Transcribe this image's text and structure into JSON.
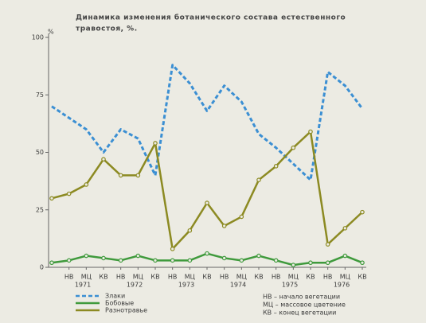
{
  "chart_data": {
    "type": "line",
    "title": [
      "Динамика изменения ботанического состава естественного",
      "травостоя, %."
    ],
    "y_label": "%",
    "categories": [
      null,
      "НВ",
      "МЦ",
      "КВ",
      "НВ",
      "МЦ",
      "КВ",
      "НВ",
      "МЦ",
      "КВ",
      "НВ",
      "МЦ",
      "КВ",
      "НВ",
      "МЦ",
      "КВ",
      "НВ",
      "МЦ",
      "КВ"
    ],
    "year_labels": [
      "1971",
      "1972",
      "1973",
      "1974",
      "1975",
      "1976"
    ],
    "ylim": [
      0,
      100
    ],
    "yticks": [
      0,
      25,
      50,
      75,
      100
    ],
    "series": [
      {
        "name": "Злаки",
        "color": "#3b8fd3",
        "dash": true,
        "marker": false,
        "values": [
          70,
          65,
          60,
          50,
          60,
          56,
          40,
          88,
          80,
          68,
          79,
          72,
          58,
          52,
          45,
          38,
          85,
          79,
          69
        ]
      },
      {
        "name": "Бобовые",
        "color": "#3f9a3c",
        "dash": false,
        "marker": true,
        "values": [
          2,
          3,
          5,
          4,
          3,
          5,
          3,
          3,
          3,
          6,
          4,
          3,
          5,
          3,
          1,
          2,
          2,
          5,
          2
        ]
      },
      {
        "name": "Разнотравье",
        "color": "#8c8a22",
        "dash": false,
        "marker": true,
        "values": [
          30,
          32,
          36,
          47,
          40,
          40,
          54,
          8,
          16,
          28,
          18,
          22,
          38,
          44,
          52,
          59,
          10,
          17,
          24
        ]
      }
    ],
    "notes": [
      "НВ – начало вегетации",
      "МЦ – массовое цветение",
      "КВ – конец вегетации"
    ]
  }
}
